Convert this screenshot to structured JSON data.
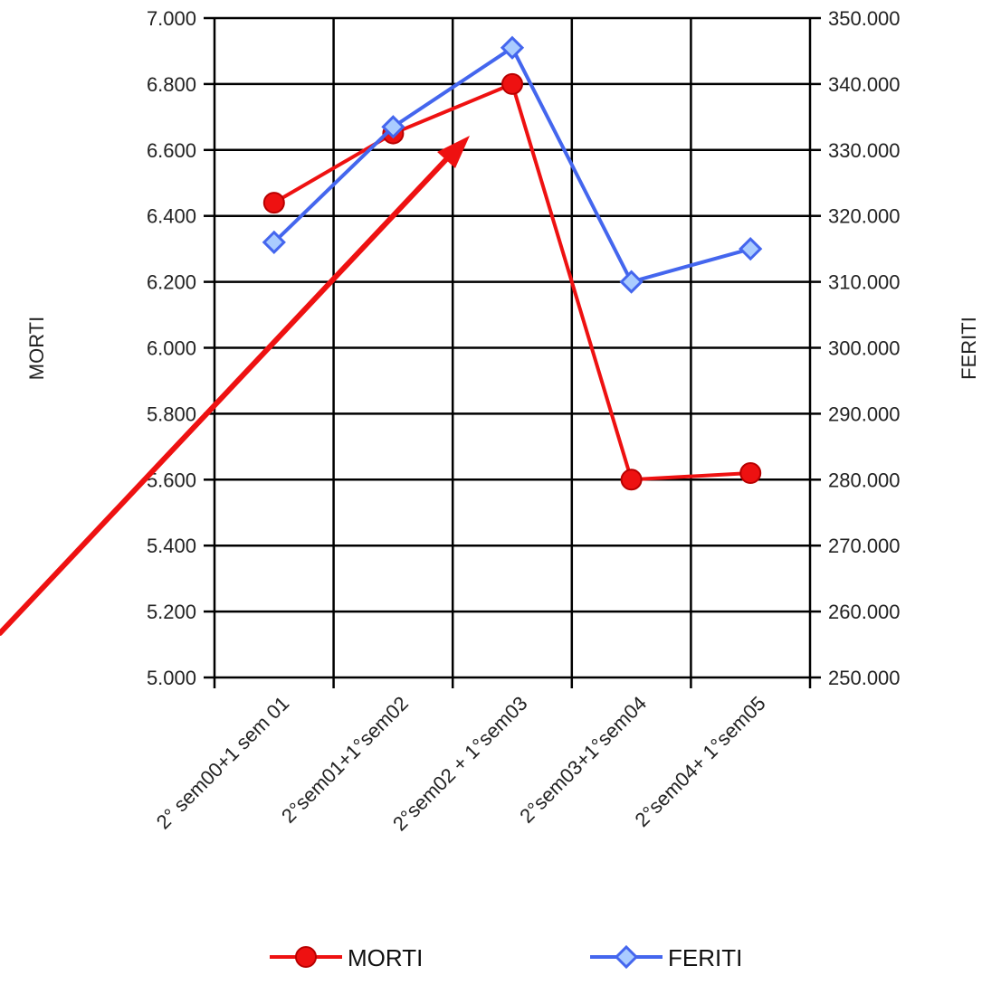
{
  "chart_data": {
    "type": "line",
    "title": "",
    "xlabel": "",
    "categories": [
      "2° sem00+1 sem 01",
      "2°sem01+1°sem02",
      "2°sem02 + 1°sem03",
      "2°sem03+1°sem04",
      "2°sem04+ 1°sem05"
    ],
    "y_left": {
      "label": "MORTI",
      "ylim": [
        5000,
        7000
      ],
      "ticks": [
        5000,
        5200,
        5400,
        5600,
        5800,
        6000,
        6200,
        6400,
        6600,
        6800,
        7000
      ],
      "tick_labels": [
        "5.000",
        "5.200",
        "5.400",
        "5.600",
        "5.800",
        "6.000",
        "6.200",
        "6.400",
        "6.600",
        "6.800",
        "7.000"
      ]
    },
    "y_right": {
      "label": "FERITI",
      "ylim": [
        250000,
        350000
      ],
      "ticks": [
        250000,
        260000,
        270000,
        280000,
        290000,
        300000,
        310000,
        320000,
        330000,
        340000,
        350000
      ],
      "tick_labels": [
        "250.000",
        "260.000",
        "270.000",
        "280.000",
        "290.000",
        "300.000",
        "310.000",
        "320.000",
        "330.000",
        "340.000",
        "350.000"
      ]
    },
    "series": [
      {
        "name": "MORTI",
        "axis": "left",
        "color": "#ee1111",
        "marker": "circle",
        "values": [
          6440,
          6650,
          6800,
          5600,
          5620
        ]
      },
      {
        "name": "FERITI",
        "axis": "right",
        "color": "#4466ee",
        "marker": "diamond",
        "values": [
          316000,
          333500,
          345500,
          310000,
          315000
        ]
      }
    ],
    "grid": true,
    "legend": "bottom",
    "annotation": {
      "type": "arrow",
      "color": "#ee1111",
      "points_to": "2°sem02 + 1°sem03"
    }
  }
}
